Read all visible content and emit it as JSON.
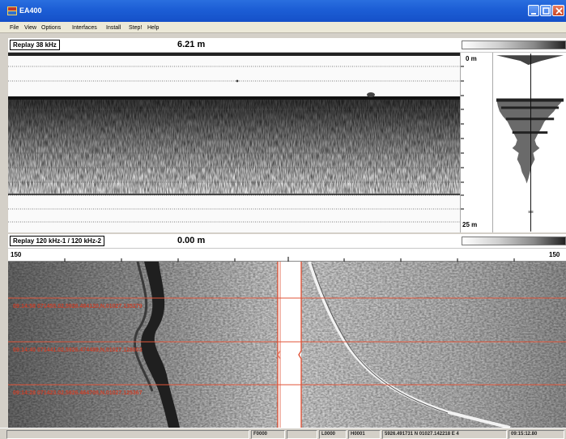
{
  "window": {
    "title": "EA400",
    "icon": "ea400-app-icon"
  },
  "menu": [
    "File",
    "View",
    "Options",
    "Interfaces",
    "Install",
    "Step!",
    "Help"
  ],
  "top_panel": {
    "channel_label": "Replay 38 kHz",
    "depth_readout": "6.21 m",
    "scale_top": "0 m",
    "scale_bottom": "25 m"
  },
  "bottom_panel": {
    "channel_label": "Replay 120 kHz-1 / 120 kHz-2",
    "depth_readout": "0.00 m",
    "range_left": "150",
    "range_right": "150",
    "annotations": [
      "09:14:58  071455.02,5926.484120,N,01027.135279",
      "09:14:40  071441.02,5926.474489,N,01027.128003",
      "09:14:28  071423.02,5926.464708,N,01027.125367"
    ]
  },
  "status_bar": {
    "field1": "",
    "field2": "F0000",
    "field3": "",
    "field4": "L0000",
    "field5": "H0001",
    "position": "5926.491731 N 01027.142218 E 4",
    "time": "09:15:12.80"
  },
  "colors": {
    "title_bar": "#1d5fd6",
    "annotation": "#e0553a",
    "echo_dark": "#1a1a1a"
  }
}
